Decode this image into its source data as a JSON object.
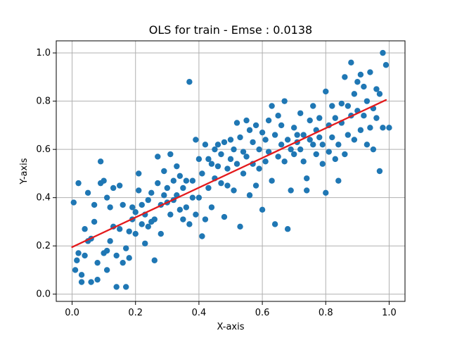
{
  "chart_data": {
    "type": "scatter",
    "title": "OLS for train - Emse : 0.0138",
    "xlabel": "X-axis",
    "ylabel": "Y-axis",
    "xlim": [
      -0.05,
      1.05
    ],
    "ylim": [
      -0.03,
      1.05
    ],
    "xticks": [
      0.0,
      0.2,
      0.4,
      0.6,
      0.8,
      1.0
    ],
    "yticks": [
      0.0,
      0.2,
      0.4,
      0.6,
      0.8,
      1.0
    ],
    "xtick_labels": [
      "0.0",
      "0.2",
      "0.4",
      "0.6",
      "0.8",
      "1.0"
    ],
    "ytick_labels": [
      "0.0",
      "0.2",
      "0.4",
      "0.6",
      "0.8",
      "1.0"
    ],
    "grid": true,
    "series": [
      {
        "kind": "scatter",
        "color": "#1f77b4",
        "points": [
          [
            0.005,
            0.38
          ],
          [
            0.01,
            0.1
          ],
          [
            0.015,
            0.14
          ],
          [
            0.02,
            0.17
          ],
          [
            0.02,
            0.46
          ],
          [
            0.03,
            0.05
          ],
          [
            0.03,
            0.08
          ],
          [
            0.04,
            0.16
          ],
          [
            0.04,
            0.27
          ],
          [
            0.05,
            0.22
          ],
          [
            0.05,
            0.42
          ],
          [
            0.06,
            0.05
          ],
          [
            0.06,
            0.23
          ],
          [
            0.07,
            0.3
          ],
          [
            0.07,
            0.37
          ],
          [
            0.08,
            0.13
          ],
          [
            0.08,
            0.06
          ],
          [
            0.09,
            0.55
          ],
          [
            0.09,
            0.46
          ],
          [
            0.1,
            0.17
          ],
          [
            0.1,
            0.47
          ],
          [
            0.11,
            0.1
          ],
          [
            0.11,
            0.18
          ],
          [
            0.11,
            0.4
          ],
          [
            0.12,
            0.22
          ],
          [
            0.12,
            0.36
          ],
          [
            0.13,
            0.28
          ],
          [
            0.13,
            0.44
          ],
          [
            0.14,
            0.16
          ],
          [
            0.14,
            0.03
          ],
          [
            0.15,
            0.27
          ],
          [
            0.15,
            0.45
          ],
          [
            0.16,
            0.13
          ],
          [
            0.16,
            0.37
          ],
          [
            0.17,
            0.19
          ],
          [
            0.17,
            0.03
          ],
          [
            0.18,
            0.26
          ],
          [
            0.18,
            0.15
          ],
          [
            0.19,
            0.31
          ],
          [
            0.19,
            0.36
          ],
          [
            0.2,
            0.25
          ],
          [
            0.2,
            0.34
          ],
          [
            0.21,
            0.43
          ],
          [
            0.21,
            0.5
          ],
          [
            0.22,
            0.29
          ],
          [
            0.22,
            0.37
          ],
          [
            0.23,
            0.21
          ],
          [
            0.23,
            0.33
          ],
          [
            0.24,
            0.39
          ],
          [
            0.24,
            0.28
          ],
          [
            0.25,
            0.3
          ],
          [
            0.25,
            0.42
          ],
          [
            0.26,
            0.14
          ],
          [
            0.26,
            0.31
          ],
          [
            0.27,
            0.57
          ],
          [
            0.27,
            0.46
          ],
          [
            0.28,
            0.37
          ],
          [
            0.28,
            0.25
          ],
          [
            0.29,
            0.41
          ],
          [
            0.29,
            0.51
          ],
          [
            0.3,
            0.38
          ],
          [
            0.3,
            0.44
          ],
          [
            0.31,
            0.33
          ],
          [
            0.31,
            0.58
          ],
          [
            0.32,
            0.47
          ],
          [
            0.32,
            0.39
          ],
          [
            0.33,
            0.53
          ],
          [
            0.33,
            0.41
          ],
          [
            0.34,
            0.49
          ],
          [
            0.34,
            0.35
          ],
          [
            0.35,
            0.44
          ],
          [
            0.35,
            0.31
          ],
          [
            0.36,
            0.47
          ],
          [
            0.36,
            0.36
          ],
          [
            0.37,
            0.88
          ],
          [
            0.37,
            0.29
          ],
          [
            0.38,
            0.4
          ],
          [
            0.38,
            0.47
          ],
          [
            0.39,
            0.33
          ],
          [
            0.39,
            0.64
          ],
          [
            0.4,
            0.4
          ],
          [
            0.4,
            0.56
          ],
          [
            0.41,
            0.24
          ],
          [
            0.41,
            0.5
          ],
          [
            0.42,
            0.31
          ],
          [
            0.42,
            0.62
          ],
          [
            0.43,
            0.44
          ],
          [
            0.43,
            0.56
          ],
          [
            0.44,
            0.54
          ],
          [
            0.44,
            0.36
          ],
          [
            0.45,
            0.6
          ],
          [
            0.45,
            0.48
          ],
          [
            0.46,
            0.53
          ],
          [
            0.46,
            0.62
          ],
          [
            0.47,
            0.46
          ],
          [
            0.47,
            0.58
          ],
          [
            0.48,
            0.32
          ],
          [
            0.48,
            0.63
          ],
          [
            0.49,
            0.52
          ],
          [
            0.49,
            0.45
          ],
          [
            0.5,
            0.56
          ],
          [
            0.5,
            0.64
          ],
          [
            0.51,
            0.43
          ],
          [
            0.51,
            0.6
          ],
          [
            0.52,
            0.54
          ],
          [
            0.52,
            0.71
          ],
          [
            0.53,
            0.28
          ],
          [
            0.53,
            0.65
          ],
          [
            0.54,
            0.5
          ],
          [
            0.54,
            0.59
          ],
          [
            0.55,
            0.57
          ],
          [
            0.55,
            0.72
          ],
          [
            0.56,
            0.41
          ],
          [
            0.56,
            0.68
          ],
          [
            0.57,
            0.54
          ],
          [
            0.57,
            0.63
          ],
          [
            0.58,
            0.45
          ],
          [
            0.58,
            0.7
          ],
          [
            0.59,
            0.52
          ],
          [
            0.59,
            0.6
          ],
          [
            0.6,
            0.35
          ],
          [
            0.6,
            0.67
          ],
          [
            0.61,
            0.55
          ],
          [
            0.61,
            0.64
          ],
          [
            0.62,
            0.72
          ],
          [
            0.62,
            0.59
          ],
          [
            0.63,
            0.47
          ],
          [
            0.63,
            0.78
          ],
          [
            0.64,
            0.29
          ],
          [
            0.64,
            0.66
          ],
          [
            0.65,
            0.74
          ],
          [
            0.65,
            0.57
          ],
          [
            0.66,
            0.62
          ],
          [
            0.66,
            0.7
          ],
          [
            0.67,
            0.8
          ],
          [
            0.67,
            0.55
          ],
          [
            0.68,
            0.27
          ],
          [
            0.68,
            0.64
          ],
          [
            0.69,
            0.43
          ],
          [
            0.69,
            0.6
          ],
          [
            0.7,
            0.69
          ],
          [
            0.7,
            0.58
          ],
          [
            0.71,
            0.63
          ],
          [
            0.71,
            0.66
          ],
          [
            0.72,
            0.6
          ],
          [
            0.72,
            0.75
          ],
          [
            0.73,
            0.66
          ],
          [
            0.73,
            0.55
          ],
          [
            0.74,
            0.43
          ],
          [
            0.74,
            0.48
          ],
          [
            0.75,
            0.72
          ],
          [
            0.75,
            0.64
          ],
          [
            0.76,
            0.62
          ],
          [
            0.76,
            0.78
          ],
          [
            0.77,
            0.68
          ],
          [
            0.77,
            0.58
          ],
          [
            0.78,
            0.65
          ],
          [
            0.78,
            0.73
          ],
          [
            0.79,
            0.54
          ],
          [
            0.79,
            0.62
          ],
          [
            0.8,
            0.42
          ],
          [
            0.8,
            0.84
          ],
          [
            0.81,
            0.7
          ],
          [
            0.81,
            0.59
          ],
          [
            0.82,
            0.78
          ],
          [
            0.82,
            0.65
          ],
          [
            0.83,
            0.56
          ],
          [
            0.83,
            0.73
          ],
          [
            0.84,
            0.47
          ],
          [
            0.84,
            0.62
          ],
          [
            0.85,
            0.79
          ],
          [
            0.85,
            0.71
          ],
          [
            0.86,
            0.9
          ],
          [
            0.86,
            0.58
          ],
          [
            0.87,
            0.78
          ],
          [
            0.87,
            0.66
          ],
          [
            0.88,
            0.96
          ],
          [
            0.88,
            0.74
          ],
          [
            0.89,
            0.83
          ],
          [
            0.89,
            0.64
          ],
          [
            0.9,
            0.88
          ],
          [
            0.9,
            0.76
          ],
          [
            0.91,
            0.91
          ],
          [
            0.91,
            0.68
          ],
          [
            0.92,
            0.86
          ],
          [
            0.92,
            0.74
          ],
          [
            0.93,
            0.62
          ],
          [
            0.93,
            0.8
          ],
          [
            0.94,
            0.69
          ],
          [
            0.94,
            0.92
          ],
          [
            0.95,
            0.77
          ],
          [
            0.95,
            0.6
          ],
          [
            0.96,
            0.73
          ],
          [
            0.96,
            0.85
          ],
          [
            0.97,
            0.51
          ],
          [
            0.97,
            0.83
          ],
          [
            0.98,
            1.0
          ],
          [
            0.98,
            0.69
          ],
          [
            0.99,
            0.95
          ],
          [
            1.0,
            0.69
          ]
        ]
      },
      {
        "kind": "line",
        "color": "#e41a1c",
        "points": [
          [
            0.0,
            0.195
          ],
          [
            0.99,
            0.805
          ]
        ]
      }
    ]
  }
}
